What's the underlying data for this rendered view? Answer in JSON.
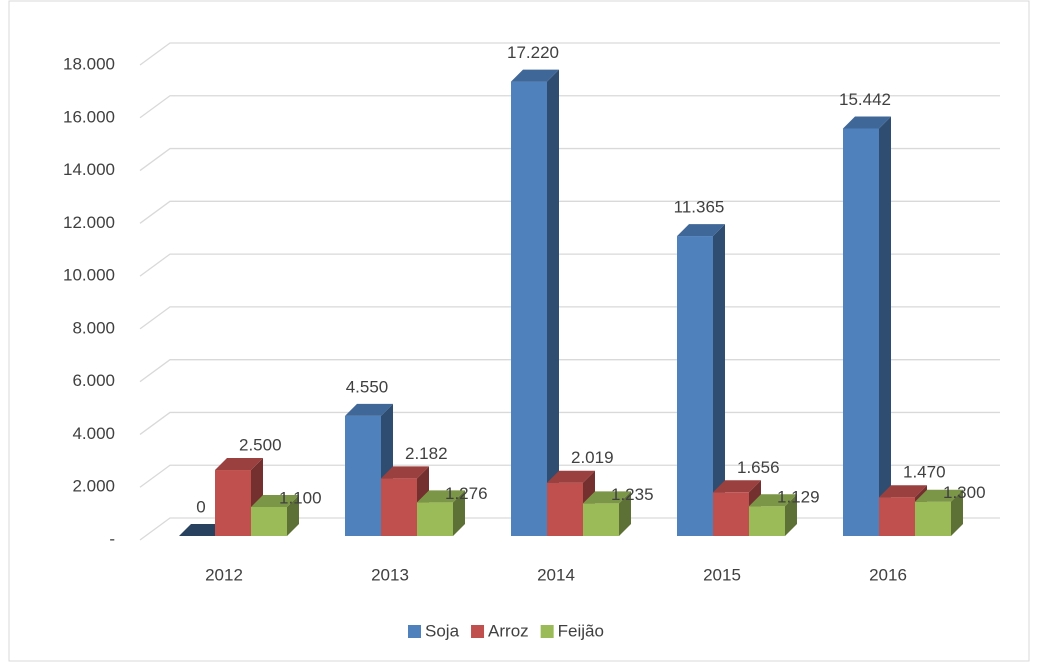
{
  "chart_data": {
    "type": "bar3d",
    "categories": [
      "2012",
      "2013",
      "2014",
      "2015",
      "2016"
    ],
    "series": [
      {
        "name": "Soja",
        "color": "#4f81bd",
        "values": [
          0,
          4550,
          17220,
          11365,
          15442
        ],
        "value_labels": [
          "0",
          "4.550",
          "17.220",
          "11.365",
          "15.442"
        ]
      },
      {
        "name": "Arroz",
        "color": "#c0504d",
        "values": [
          2500,
          2182,
          2019,
          1656,
          1470
        ],
        "value_labels": [
          "2.500",
          "2.182",
          "2.019",
          "1.656",
          "1.470"
        ]
      },
      {
        "name": "Feijão",
        "color": "#9bbb59",
        "values": [
          1100,
          1276,
          1235,
          1129,
          1300
        ],
        "value_labels": [
          "1.100",
          "1.276",
          "1.235",
          "1.129",
          "1.300"
        ]
      }
    ],
    "ylim": [
      0,
      18000
    ],
    "yticks": [
      {
        "value": 0,
        "label": "-"
      },
      {
        "value": 2000,
        "label": "2.000"
      },
      {
        "value": 4000,
        "label": "4.000"
      },
      {
        "value": 6000,
        "label": "6.000"
      },
      {
        "value": 8000,
        "label": "8.000"
      },
      {
        "value": 10000,
        "label": "10.000"
      },
      {
        "value": 12000,
        "label": "12.000"
      },
      {
        "value": 14000,
        "label": "14.000"
      },
      {
        "value": 16000,
        "label": "16.000"
      },
      {
        "value": 18000,
        "label": "18.000"
      }
    ],
    "grid": true,
    "legend": "bottom"
  }
}
